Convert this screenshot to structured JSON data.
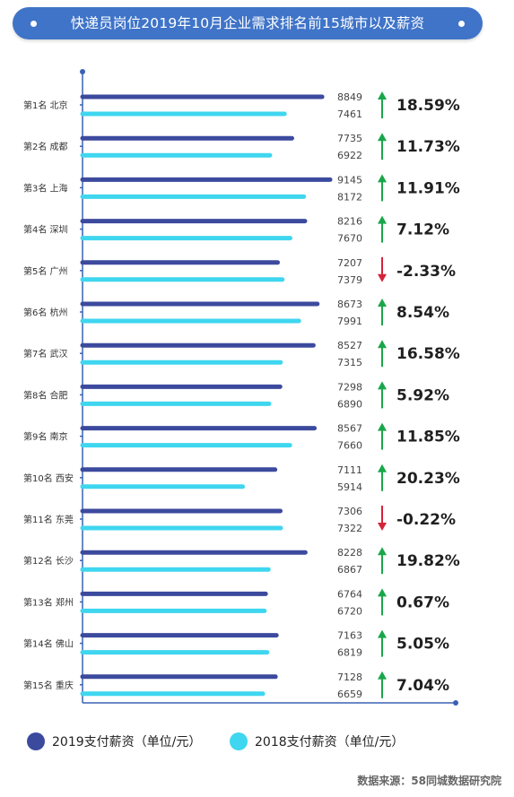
{
  "title": "快递员岗位2019年10月企业需求排名前15城市以及薪资",
  "source": "数据来源：58同城数据研究院",
  "colors": {
    "title_bg": "#3f74c8",
    "series_2019": "#3c4a9e",
    "series_2018": "#3fd6ef",
    "axis": "#3a62b3",
    "up_arrow": "#1aa64a",
    "down_arrow": "#d6223a"
  },
  "legend": [
    {
      "label": "2019支付薪资（单位/元）",
      "color": "#3c4a9e"
    },
    {
      "label": "2018支付薪资（单位/元）",
      "color": "#3fd6ef"
    }
  ],
  "chart_data": {
    "type": "bar",
    "orientation": "horizontal",
    "categories": [
      "第1名 北京",
      "第2名 成都",
      "第3名 上海",
      "第4名 深圳",
      "第5名 广州",
      "第6名 杭州",
      "第7名 武汉",
      "第8名 合肥",
      "第9名 南京",
      "第10名 西安",
      "第11名 东莞",
      "第12名 长沙",
      "第13名 郑州",
      "第14名 佛山",
      "第15名 重庆"
    ],
    "series": [
      {
        "name": "2019支付薪资（单位/元）",
        "values": [
          8849,
          7735,
          9145,
          8216,
          7207,
          8673,
          8527,
          7298,
          8567,
          7111,
          7306,
          8228,
          6764,
          7163,
          7128
        ]
      },
      {
        "name": "2018支付薪资（单位/元）",
        "values": [
          7461,
          6922,
          8172,
          7670,
          7379,
          7991,
          7315,
          6890,
          7660,
          5914,
          7322,
          6867,
          6720,
          6819,
          6659
        ]
      }
    ],
    "changes": [
      "18.59%",
      "11.73%",
      "11.91%",
      "7.12%",
      "-2.33%",
      "8.54%",
      "16.58%",
      "5.92%",
      "11.85%",
      "20.23%",
      "-0.22%",
      "19.82%",
      "0.67%",
      "5.05%",
      "7.04%"
    ],
    "change_direction": [
      "up",
      "up",
      "up",
      "up",
      "down",
      "up",
      "up",
      "up",
      "up",
      "up",
      "down",
      "up",
      "up",
      "up",
      "up"
    ],
    "grid": false,
    "legend_position": "bottom"
  }
}
